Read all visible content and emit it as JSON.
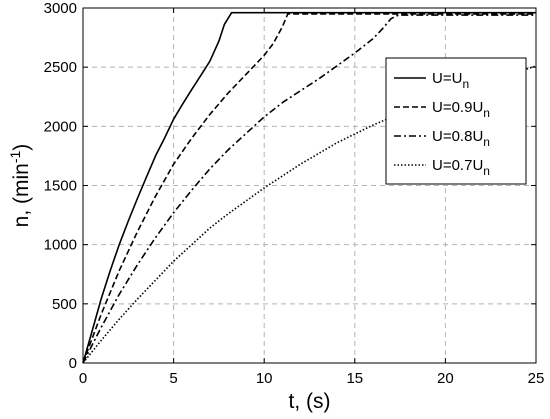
{
  "chart_data": {
    "type": "line",
    "xlabel": "t, (s)",
    "ylabel": "n, (min⁻¹)",
    "xlim": [
      0,
      25
    ],
    "ylim": [
      0,
      3000
    ],
    "xticks": [
      0,
      5,
      10,
      15,
      20,
      25
    ],
    "yticks": [
      0,
      500,
      1000,
      1500,
      2000,
      2500,
      3000
    ],
    "grid": true,
    "legend_position": "top-right",
    "series": [
      {
        "name": "U=Un",
        "dash": "solid",
        "x": [
          0,
          0.5,
          1,
          1.5,
          2,
          2.5,
          3,
          3.5,
          4,
          4.5,
          5,
          5.5,
          6,
          6.5,
          7,
          7.5,
          7.8,
          8.2,
          9,
          10,
          12,
          15,
          20,
          25
        ],
        "y": [
          0,
          270,
          540,
          780,
          1000,
          1200,
          1390,
          1570,
          1750,
          1900,
          2060,
          2190,
          2310,
          2430,
          2550,
          2720,
          2860,
          2960,
          2960,
          2960,
          2960,
          2960,
          2960,
          2960
        ]
      },
      {
        "name": "U=0.9Un",
        "dash": "dashed",
        "x": [
          0,
          1,
          2,
          3,
          4,
          5,
          6,
          7,
          8,
          9,
          10,
          10.5,
          11,
          11.3,
          12,
          15,
          20,
          25
        ],
        "y": [
          0,
          410,
          780,
          1110,
          1410,
          1680,
          1900,
          2100,
          2280,
          2440,
          2600,
          2700,
          2840,
          2950,
          2950,
          2950,
          2950,
          2950
        ]
      },
      {
        "name": "U=0.8Un",
        "dash": "dashdot",
        "x": [
          0,
          1,
          2,
          3,
          4,
          5,
          6,
          7,
          8,
          9,
          10,
          11,
          12,
          13,
          14,
          15,
          16,
          16.5,
          17,
          17.4,
          18,
          20,
          25
        ],
        "y": [
          0,
          300,
          580,
          830,
          1060,
          1270,
          1460,
          1640,
          1800,
          1940,
          2080,
          2200,
          2300,
          2400,
          2510,
          2620,
          2740,
          2820,
          2910,
          2940,
          2940,
          2940,
          2940
        ]
      },
      {
        "name": "U=0.7Un",
        "dash": "dotted",
        "x": [
          0,
          1,
          2,
          3,
          4,
          5,
          6,
          7,
          8,
          9,
          10,
          12,
          14,
          16,
          18,
          20,
          22,
          24,
          25
        ],
        "y": [
          0,
          190,
          370,
          540,
          700,
          860,
          1000,
          1140,
          1260,
          1370,
          1480,
          1680,
          1860,
          2010,
          2140,
          2260,
          2360,
          2460,
          2510
        ]
      }
    ],
    "legend": [
      {
        "base": "U=U",
        "sub": "n"
      },
      {
        "base": "U=0.9U",
        "sub": "n"
      },
      {
        "base": "U=0.8U",
        "sub": "n"
      },
      {
        "base": "U=0.7U",
        "sub": "n"
      }
    ],
    "ylabel_parts": {
      "base": "n, (min",
      "sup": "-1",
      "tail": ")"
    }
  }
}
